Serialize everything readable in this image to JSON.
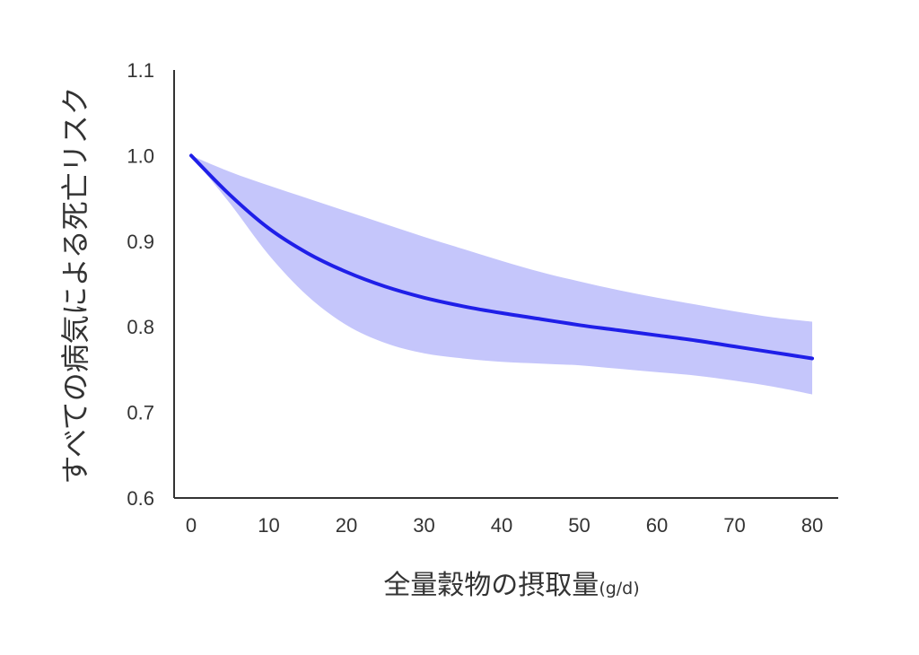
{
  "chart_data": {
    "type": "line",
    "xlabel": "全量穀物の摂取量",
    "xlabel_unit": "(g/d)",
    "ylabel": "すべての病気による死亡リスク",
    "xlim": [
      0,
      80
    ],
    "ylim": [
      0.6,
      1.1
    ],
    "x_ticks": [
      "0",
      "10",
      "20",
      "30",
      "40",
      "50",
      "60",
      "70",
      "80"
    ],
    "y_ticks": [
      "0.6",
      "0.7",
      "0.8",
      "0.9",
      "1.0",
      "1.1"
    ],
    "grid": false,
    "series": [
      {
        "color": "#1f1fe8",
        "x": [
          0,
          5,
          10,
          15,
          20,
          25,
          30,
          35,
          40,
          45,
          50,
          55,
          60,
          65,
          70,
          75,
          80
        ],
        "y": [
          1.0,
          0.954,
          0.915,
          0.886,
          0.864,
          0.847,
          0.834,
          0.824,
          0.816,
          0.809,
          0.802,
          0.796,
          0.79,
          0.784,
          0.777,
          0.77,
          0.763
        ],
        "ci_lower": [
          1.0,
          0.944,
          0.884,
          0.836,
          0.802,
          0.781,
          0.769,
          0.763,
          0.759,
          0.757,
          0.755,
          0.751,
          0.747,
          0.743,
          0.737,
          0.73,
          0.721
        ],
        "ci_upper": [
          1.0,
          0.981,
          0.965,
          0.95,
          0.935,
          0.92,
          0.905,
          0.891,
          0.877,
          0.864,
          0.853,
          0.843,
          0.834,
          0.826,
          0.818,
          0.811,
          0.806
        ],
        "ci_color": "#c5c6fb"
      }
    ]
  }
}
